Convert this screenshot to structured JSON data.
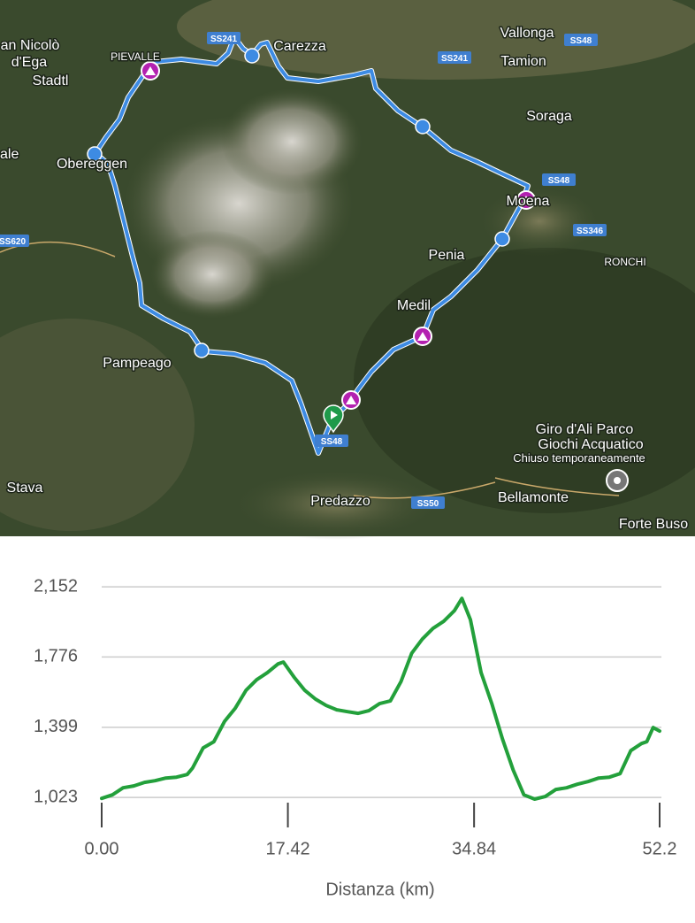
{
  "map": {
    "labels": [
      "an Nicolò",
      "d'Ega",
      "Stadtl",
      "ale",
      "Obereggen",
      "PIEVALLE",
      "Carezza",
      "Vallonga",
      "Tamion",
      "Soraga",
      "Moena",
      "RONCHI",
      "Penia",
      "Medil",
      "Pampeago",
      "Giro d'Ali Parco",
      "Giochi Acquatico",
      "Chiuso temporaneamente",
      "Stava",
      "Predazzo",
      "Bellamonte",
      "Forte Buso"
    ],
    "roads": [
      "SS241",
      "SS241",
      "SS48",
      "SS48",
      "SS346",
      "SS620",
      "SS48",
      "SS50"
    ]
  },
  "chart_data": {
    "type": "line",
    "x_label": "Distanza (km)",
    "x": [
      0,
      1,
      2,
      3,
      4,
      5,
      6,
      7,
      8,
      8.5,
      9.5,
      10.5,
      11.5,
      12.5,
      13.5,
      14.5,
      15.5,
      16.5,
      17,
      18,
      19,
      20,
      21,
      22,
      23,
      24,
      25,
      26,
      27,
      28,
      29,
      30,
      31,
      32,
      33,
      33.7,
      34.5,
      35.5,
      36.5,
      37.5,
      38.5,
      39.5,
      40.5,
      41.5,
      42.5,
      43.5,
      44.5,
      45.5,
      46.5,
      47.5,
      48.5,
      49.5,
      50.5,
      51,
      51.6,
      52.2
    ],
    "values": [
      1018,
      1037,
      1075,
      1085,
      1104,
      1113,
      1127,
      1132,
      1146,
      1180,
      1289,
      1322,
      1431,
      1502,
      1597,
      1654,
      1692,
      1739,
      1749,
      1668,
      1597,
      1550,
      1516,
      1493,
      1483,
      1474,
      1488,
      1526,
      1540,
      1644,
      1796,
      1872,
      1929,
      1967,
      2024,
      2090,
      1976,
      1692,
      1526,
      1336,
      1170,
      1037,
      1014,
      1028,
      1066,
      1075,
      1094,
      1108,
      1127,
      1132,
      1151,
      1274,
      1312,
      1322,
      1398,
      1379
    ],
    "color": "#23a03b",
    "xlim": [
      0,
      52.2
    ],
    "xticks": [
      {
        "value": 0,
        "label": "0.00"
      },
      17.42,
      34.84,
      52.2
    ],
    "ylim": [
      1000,
      2200
    ],
    "yticks": [
      {
        "value": 1023,
        "label": "1,023"
      },
      {
        "value": 1399,
        "label": "1,399"
      },
      {
        "value": 1776,
        "label": "1,776"
      },
      {
        "value": 2152,
        "label": "2,152"
      }
    ],
    "grid": true
  }
}
